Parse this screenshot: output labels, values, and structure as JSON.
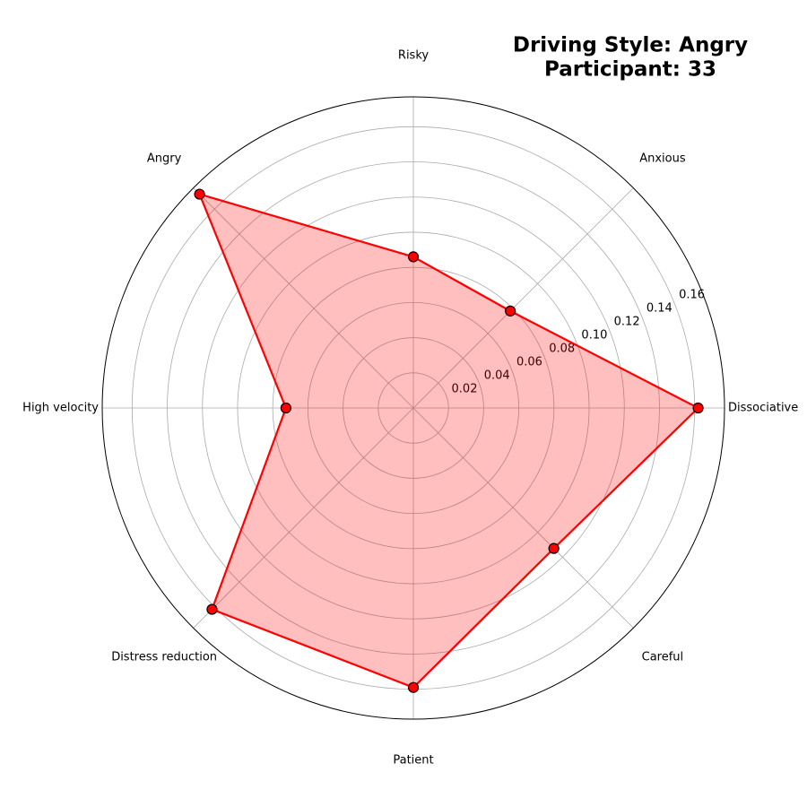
{
  "chart_data": {
    "type": "radar",
    "title": [
      "Driving Style: Angry",
      "Participant: 33"
    ],
    "title_color": "#00008b",
    "categories": [
      "Dissociative",
      "Anxious",
      "Risky",
      "Angry",
      "High velocity",
      "Distress reduction",
      "Patient",
      "Careful"
    ],
    "series": [
      {
        "color": "#ff0000",
        "values": [
          0.162,
          0.078,
          0.086,
          0.172,
          0.0725,
          0.162,
          0.159,
          0.113
        ]
      }
    ],
    "ylim": [
      0,
      0.177
    ],
    "yticks": [
      {
        "value": 0.02,
        "label": "0.02"
      },
      {
        "value": 0.04,
        "label": "0.04"
      },
      {
        "value": 0.06,
        "label": "0.06"
      },
      {
        "value": 0.08,
        "label": "0.08"
      },
      {
        "value": 0.1,
        "label": "0.10"
      },
      {
        "value": 0.12,
        "label": "0.12"
      },
      {
        "value": 0.14,
        "label": "0.14"
      },
      {
        "value": 0.16,
        "label": "0.16"
      }
    ],
    "grid": true
  }
}
